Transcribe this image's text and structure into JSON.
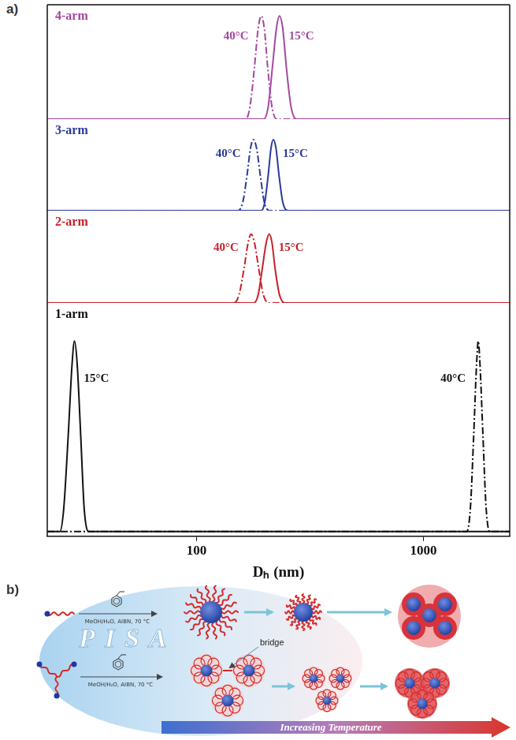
{
  "panel_labels": [
    "a)",
    "b)"
  ],
  "chart_data": [
    {
      "type": "line",
      "title": "4-arm",
      "log": "x",
      "grid": false,
      "tick_labels": false,
      "xlim": [
        22,
        2400
      ],
      "ylim": [
        0,
        1.11
      ],
      "series": [
        {
          "name": "40°C",
          "color": "#a5489f",
          "line_style": "dashdot",
          "x": [
            22,
            165,
            172,
            180,
            187,
            193,
            199,
            206,
            215,
            226,
            2400
          ],
          "values": [
            0,
            0,
            0.12,
            0.5,
            0.88,
            1,
            0.88,
            0.5,
            0.12,
            0,
            0
          ]
        },
        {
          "name": "15°C",
          "color": "#a5489f",
          "line_style": "solid",
          "x": [
            22,
            198,
            207,
            216,
            225,
            232,
            240,
            249,
            261,
            276,
            2400
          ],
          "values": [
            0,
            0,
            0.12,
            0.5,
            0.88,
            1,
            0.88,
            0.5,
            0.12,
            0,
            0
          ]
        }
      ]
    },
    {
      "type": "line",
      "title": "3-arm",
      "log": "x",
      "grid": false,
      "tick_labels": false,
      "xlim": [
        22,
        2400
      ],
      "ylim": [
        0,
        1.29
      ],
      "series": [
        {
          "name": "40°C",
          "color": "#2b3a9a",
          "line_style": "dashdot",
          "x": [
            22,
            152,
            160,
            167,
            173,
            178,
            184,
            191,
            199,
            210,
            2400
          ],
          "values": [
            0,
            0,
            0.12,
            0.5,
            0.88,
            1,
            0.88,
            0.5,
            0.12,
            0,
            0
          ]
        },
        {
          "name": "15°C",
          "color": "#2b3a9a",
          "line_style": "solid",
          "x": [
            22,
            193,
            200,
            207,
            213,
            218,
            224,
            231,
            240,
            255,
            2400
          ],
          "values": [
            0,
            0,
            0.12,
            0.5,
            0.88,
            1,
            0.88,
            0.5,
            0.12,
            0,
            0
          ]
        }
      ]
    },
    {
      "type": "line",
      "title": "2-arm",
      "log": "x",
      "grid": false,
      "tick_labels": false,
      "xlim": [
        22,
        2400
      ],
      "ylim": [
        0,
        1.34
      ],
      "series": [
        {
          "name": "40°C",
          "color": "#c8202a",
          "line_style": "dashdot",
          "x": [
            22,
            146,
            154,
            162,
            169,
            174,
            180,
            188,
            197,
            209,
            2400
          ],
          "values": [
            0,
            0,
            0.12,
            0.5,
            0.88,
            1,
            0.88,
            0.5,
            0.12,
            0,
            0
          ]
        },
        {
          "name": "15°C",
          "color": "#c8202a",
          "line_style": "solid",
          "x": [
            22,
            179,
            187,
            195,
            203,
            209,
            215,
            222,
            232,
            246,
            2400
          ],
          "values": [
            0,
            0,
            0.12,
            0.5,
            0.88,
            1,
            0.88,
            0.5,
            0.12,
            0,
            0
          ]
        }
      ]
    },
    {
      "type": "line",
      "title": "1-arm",
      "log": "x",
      "grid": false,
      "tick_labels": "x",
      "xlabel": "Dₕ (nm)",
      "xlim": [
        22,
        2400
      ],
      "ylim": [
        -0.025,
        1.2
      ],
      "xticks": [
        100,
        1000
      ],
      "series": [
        {
          "name": "40°C",
          "color": "#111111",
          "line_style": "dashdot",
          "x": [
            22,
            1550,
            1610,
            1665,
            1715,
            1745,
            1775,
            1830,
            1890,
            1960,
            2400
          ],
          "values": [
            0,
            0,
            0.12,
            0.5,
            0.88,
            1,
            0.88,
            0.5,
            0.12,
            0,
            0
          ]
        },
        {
          "name": "15°C",
          "color": "#111111",
          "line_style": "solid",
          "x": [
            22,
            25,
            26,
            27.2,
            28.3,
            29,
            29.8,
            30.9,
            32,
            33.5,
            2400
          ],
          "values": [
            0,
            0,
            0.12,
            0.5,
            0.88,
            1,
            0.88,
            0.5,
            0.12,
            0,
            0
          ]
        }
      ]
    }
  ],
  "diagram": {
    "background_text": "PISA",
    "reaction_conditions": [
      "MeOH/H₂O, AIBN, 70 °C",
      "MeOH/H₂O, AIBN, 70 °C"
    ],
    "annotation": "bridge",
    "arrow_label": "Increasing Temperature"
  }
}
